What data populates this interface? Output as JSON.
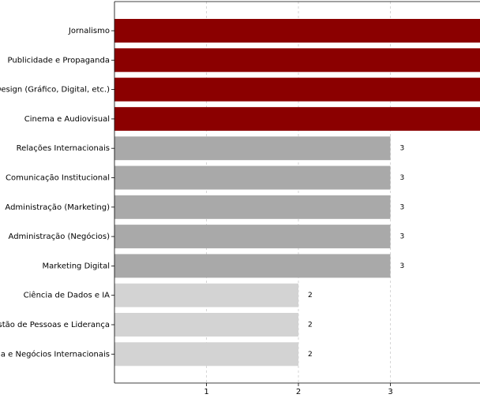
{
  "chart_data": {
    "type": "barh",
    "categories": [
      "Jornalismo",
      "Publicidade e Propaganda",
      "Design (Gráfico, Digital, etc.)",
      "Cinema e Audiovisual",
      "Relações Internacionais",
      "Comunicação Institucional",
      "Administração (Marketing)",
      "Administração (Negócios)",
      "Marketing Digital",
      "Ciência de Dados e IA",
      "estão de Pessoas e Liderança",
      "nia e Negócios Internacionais"
    ],
    "values": [
      4,
      4,
      4,
      4,
      3,
      3,
      3,
      3,
      3,
      2,
      2,
      2
    ],
    "colors": [
      "#8b0000",
      "#8b0000",
      "#8b0000",
      "#8b0000",
      "#a9a9a9",
      "#a9a9a9",
      "#a9a9a9",
      "#a9a9a9",
      "#a9a9a9",
      "#d3d3d3",
      "#d3d3d3",
      "#d3d3d3"
    ],
    "xlim": [
      0,
      4
    ],
    "xticks": [
      1,
      2,
      3
    ],
    "grid": true
  }
}
